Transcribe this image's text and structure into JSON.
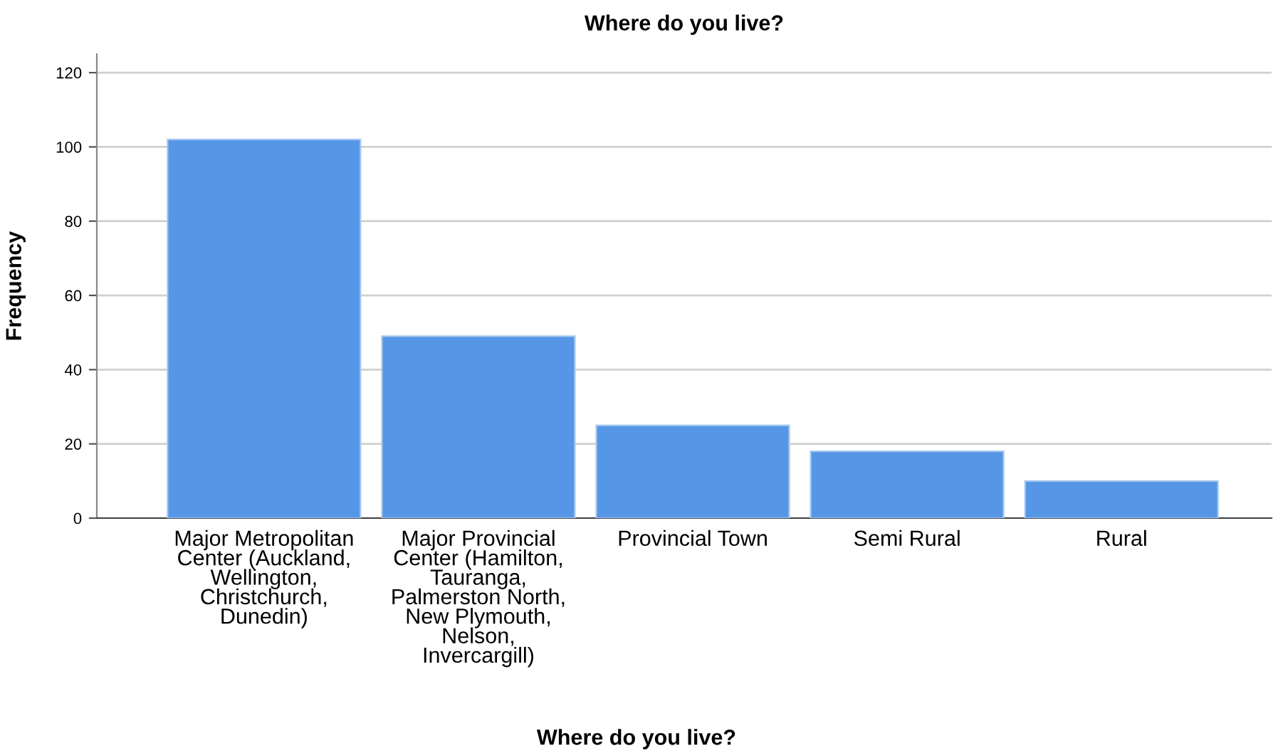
{
  "chart_data": {
    "type": "bar",
    "title": "Where do you live?",
    "xlabel": "Where do you live?",
    "ylabel": "Frequency",
    "categories": [
      "Major Metropolitan\nCenter (Auckland,\nWellington,\nChristchurch,\nDunedin)",
      "Major Provincial\nCenter (Hamilton,\nTauranga,\nPalmerston North,\nNew Plymouth,\nNelson,\nInvercargill)",
      "Provincial Town",
      "Semi Rural",
      "Rural"
    ],
    "values": [
      102,
      49,
      25,
      18,
      10
    ],
    "color": "#5596e6",
    "ylim": [
      0,
      125
    ],
    "yticks": [
      0,
      20,
      40,
      60,
      80,
      100,
      120
    ],
    "grid": "y"
  }
}
